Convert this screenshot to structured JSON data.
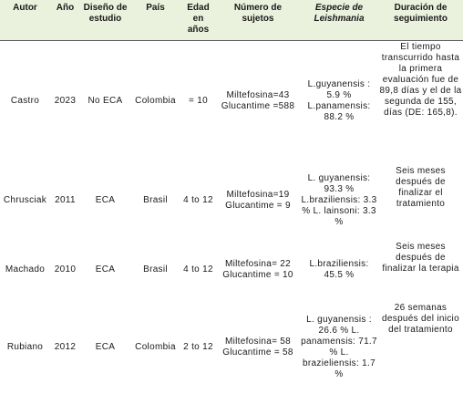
{
  "headers": {
    "autor": "Autor",
    "anio": "Año",
    "diseno": "Diseño de estudio",
    "pais": "País",
    "edad": "Edad en años",
    "sujetos": "Número de sujetos",
    "especie": "Especie de Leishmania",
    "duracion": "Duración de seguimiento"
  },
  "rows": [
    {
      "autor": "Castro",
      "anio": "2023",
      "diseno": "No ECA",
      "pais": "Colombia",
      "edad": "= 10",
      "sujetos": "Miltefosina=43 Glucantime =588",
      "especie": "L.guyanensis : 5.9 % L.panamensis: 88.2 %",
      "duracion": "El tiempo transcurrido hasta la primera evaluación fue de 89,8 días y el de la segunda de 155, días (DE: 165,8)."
    },
    {
      "autor": "Chrusciak",
      "anio": "2011",
      "diseno": "ECA",
      "pais": "Brasil",
      "edad": "4 to 12",
      "sujetos": "Miltefosina=19 Glucantime = 9",
      "especie": "L. guyanensis: 93.3 % L.braziliensis: 3.3 % L. lainsoni: 3.3 %",
      "duracion": "Seis meses después de finalizar el tratamiento"
    },
    {
      "autor": "Machado",
      "anio": "2010",
      "diseno": "ECA",
      "pais": "Brasil",
      "edad": "4 to 12",
      "sujetos": "Miltefosina= 22 Glucantime = 10",
      "especie": "L.braziliensis: 45.5 %",
      "duracion": "Seis meses después de finalizar la terapia"
    },
    {
      "autor": "Rubiano",
      "anio": "2012",
      "diseno": "ECA",
      "pais": "Colombia",
      "edad": "2 to 12",
      "sujetos": "Miltefosina= 58 Glucantime = 58",
      "especie": "L. guyanensis : 26.6 % L. panamensis: 71.7 % L. brazieliensis: 1.7 %",
      "duracion": "26 semanas después del inicio del tratamiento"
    }
  ]
}
